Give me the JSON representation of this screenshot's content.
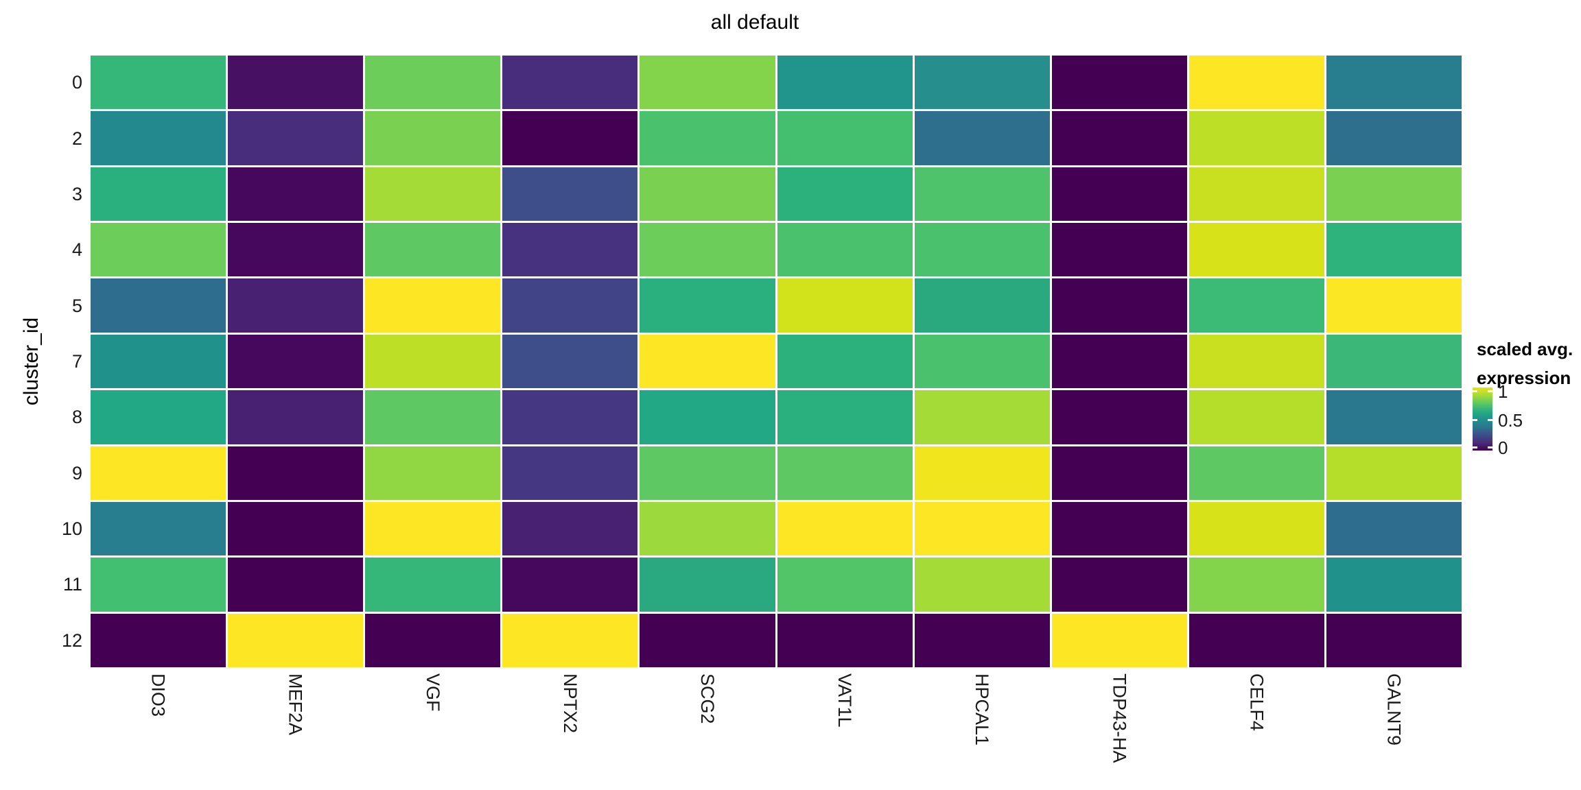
{
  "figure": {
    "title": "all default",
    "y_axis_title": "cluster_id"
  },
  "chart_data": {
    "type": "heatmap",
    "title": "all default",
    "xlabel": "",
    "ylabel": "cluster_id",
    "x_categories": [
      "DIO3",
      "MEF2A",
      "VGF",
      "NPTX2",
      "SCG2",
      "VAT1L",
      "HPCAL1",
      "TDP43-HA",
      "CELF4",
      "GALNT9"
    ],
    "y_categories": [
      "0",
      "2",
      "3",
      "4",
      "5",
      "7",
      "8",
      "9",
      "10",
      "11",
      "12"
    ],
    "values": [
      [
        0.7,
        0.08,
        0.83,
        0.2,
        0.87,
        0.57,
        0.55,
        0.0,
        1.0,
        0.49
      ],
      [
        0.53,
        0.2,
        0.85,
        0.0,
        0.76,
        0.74,
        0.45,
        0.0,
        0.95,
        0.45
      ],
      [
        0.67,
        0.04,
        0.92,
        0.32,
        0.85,
        0.68,
        0.77,
        0.0,
        0.96,
        0.85
      ],
      [
        0.83,
        0.04,
        0.8,
        0.22,
        0.83,
        0.76,
        0.76,
        0.0,
        0.97,
        0.68
      ],
      [
        0.44,
        0.16,
        1.0,
        0.29,
        0.67,
        0.97,
        0.66,
        0.0,
        0.72,
        1.0
      ],
      [
        0.56,
        0.04,
        0.95,
        0.32,
        1.0,
        0.68,
        0.76,
        0.0,
        0.96,
        0.71
      ],
      [
        0.64,
        0.16,
        0.8,
        0.25,
        0.64,
        0.67,
        0.92,
        0.0,
        0.94,
        0.47
      ],
      [
        1.0,
        0.0,
        0.89,
        0.25,
        0.8,
        0.8,
        0.99,
        0.0,
        0.8,
        0.94
      ],
      [
        0.49,
        0.0,
        1.0,
        0.16,
        0.91,
        1.0,
        1.0,
        0.0,
        0.97,
        0.44
      ],
      [
        0.74,
        0.0,
        0.7,
        0.04,
        0.67,
        0.78,
        0.92,
        0.0,
        0.87,
        0.56
      ],
      [
        0.0,
        1.0,
        0.0,
        1.0,
        0.0,
        0.0,
        0.0,
        1.0,
        0.0,
        0.0
      ]
    ],
    "cell_colors": [
      [
        "#35b779",
        "#471063",
        "#6ccd5a",
        "#472d7b",
        "#84d44b",
        "#21948b",
        "#268f8e",
        "#440154",
        "#fde725",
        "#287d8e"
      ],
      [
        "#23898e",
        "#472d7b",
        "#7ad151",
        "#440154",
        "#4ac16d",
        "#44bf70",
        "#2e6f8e",
        "#440154",
        "#bddf26",
        "#2e6f8e"
      ],
      [
        "#2ab07f",
        "#46085c",
        "#a5db36",
        "#3d4e8a",
        "#7ad151",
        "#2cb17d",
        "#4ec36b",
        "#440154",
        "#c8e020",
        "#7ad151"
      ],
      [
        "#6ccd5a",
        "#46085c",
        "#5ec962",
        "#46327e",
        "#6ccd5a",
        "#4ac16d",
        "#4ac16d",
        "#440154",
        "#d8e219",
        "#2eb37c"
      ],
      [
        "#2e6d8e",
        "#482173",
        "#fde725",
        "#414487",
        "#2ab07f",
        "#d2e21b",
        "#2aa97f",
        "#440154",
        "#3bbb75",
        "#fbe723"
      ],
      [
        "#21918c",
        "#46085c",
        "#bddf26",
        "#3d4e8a",
        "#fde725",
        "#2cb17d",
        "#4ac16d",
        "#440154",
        "#c8e020",
        "#3bb877"
      ],
      [
        "#22a884",
        "#482173",
        "#5ec962",
        "#453781",
        "#22a884",
        "#2ab07f",
        "#a5db36",
        "#440154",
        "#b5de2b",
        "#2a788e"
      ],
      [
        "#fde725",
        "#440154",
        "#90d743",
        "#453781",
        "#5ec962",
        "#5ec962",
        "#f1e51d",
        "#440154",
        "#5ec962",
        "#b5de2b"
      ],
      [
        "#287d8e",
        "#440154",
        "#fde725",
        "#482173",
        "#9bd93c",
        "#fde725",
        "#fde725",
        "#440154",
        "#d8e219",
        "#2e6d8e"
      ],
      [
        "#43bf71",
        "#440154",
        "#35b779",
        "#46085c",
        "#2aa87f",
        "#52c569",
        "#a5db36",
        "#440154",
        "#84d44b",
        "#21918c"
      ],
      [
        "#440154",
        "#fde725",
        "#440154",
        "#fde725",
        "#440154",
        "#440154",
        "#440154",
        "#fde725",
        "#440154",
        "#440154"
      ]
    ],
    "legend": {
      "title_lines": [
        "scaled avg.",
        "expression"
      ],
      "ticks": [
        "1",
        "0.5",
        "0"
      ],
      "colorscale": [
        "#440154",
        "#472d7b",
        "#3d4e8a",
        "#2a788e",
        "#21918c",
        "#27ad81",
        "#5ec962",
        "#a5db36",
        "#e8e419"
      ]
    },
    "palette": {
      "min": "#440154",
      "mid": "#21918c",
      "max": "#fde725"
    },
    "grid": false,
    "legend_position": "right"
  }
}
